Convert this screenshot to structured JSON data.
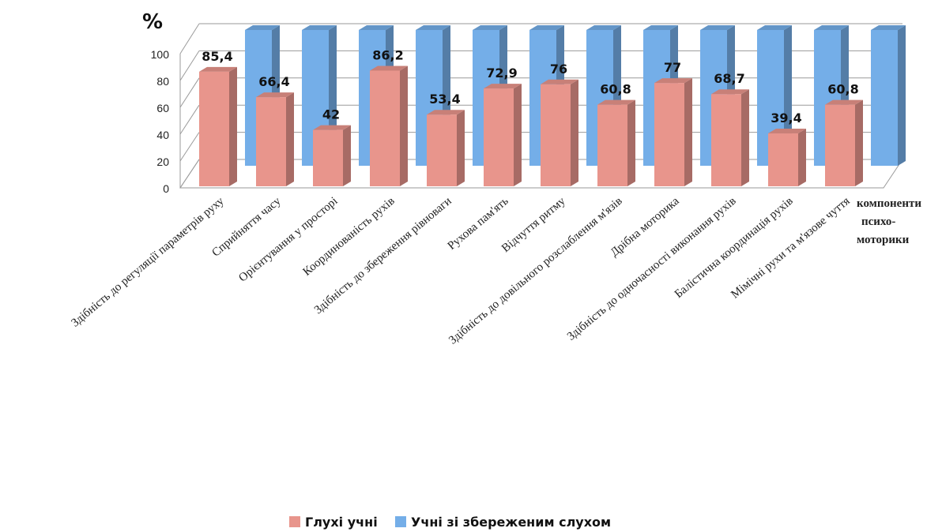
{
  "chart_data": {
    "type": "bar",
    "title": "",
    "ylabel": "%",
    "xlabel": "компоненти психо-моторики",
    "xlabel_lines": [
      "компоненти",
      "психо-",
      "моторики"
    ],
    "ylim": [
      0,
      100
    ],
    "yticks": [
      "0",
      "20",
      "40",
      "60",
      "80",
      "100"
    ],
    "grid": true,
    "legend_position": "bottom",
    "categories": [
      "Здібність до регуляції параметрів руху",
      "Сприйняття часу",
      "Орієнтування у просторі",
      "Координованість рухів",
      "Здібність до збереження рівноваги",
      "Рухова пам'ять",
      "Відчуття ритму",
      "Здібність до довільного розслаблення м'язів",
      "Дрібна моторика",
      "Здібність до одночасності виконання рухів",
      "Балістична координація рухів",
      "Мімічні рухи та м'язове чуття"
    ],
    "series": [
      {
        "name": "Глухі учні",
        "color": "#e8958c",
        "values": [
          85.4,
          66.4,
          42,
          86.2,
          53.4,
          72.9,
          76,
          60.8,
          77,
          68.7,
          39.4,
          60.8
        ],
        "labels": [
          "85,4",
          "66,4",
          "42",
          "86,2",
          "53,4",
          "72,9",
          "76",
          "60,8",
          "77",
          "68,7",
          "39,4",
          "60,8"
        ]
      },
      {
        "name": "Учні зі збереженим слухом",
        "color": "#74aee8",
        "values": [
          100,
          100,
          100,
          100,
          100,
          100,
          100,
          100,
          100,
          100,
          100,
          100
        ]
      }
    ]
  }
}
